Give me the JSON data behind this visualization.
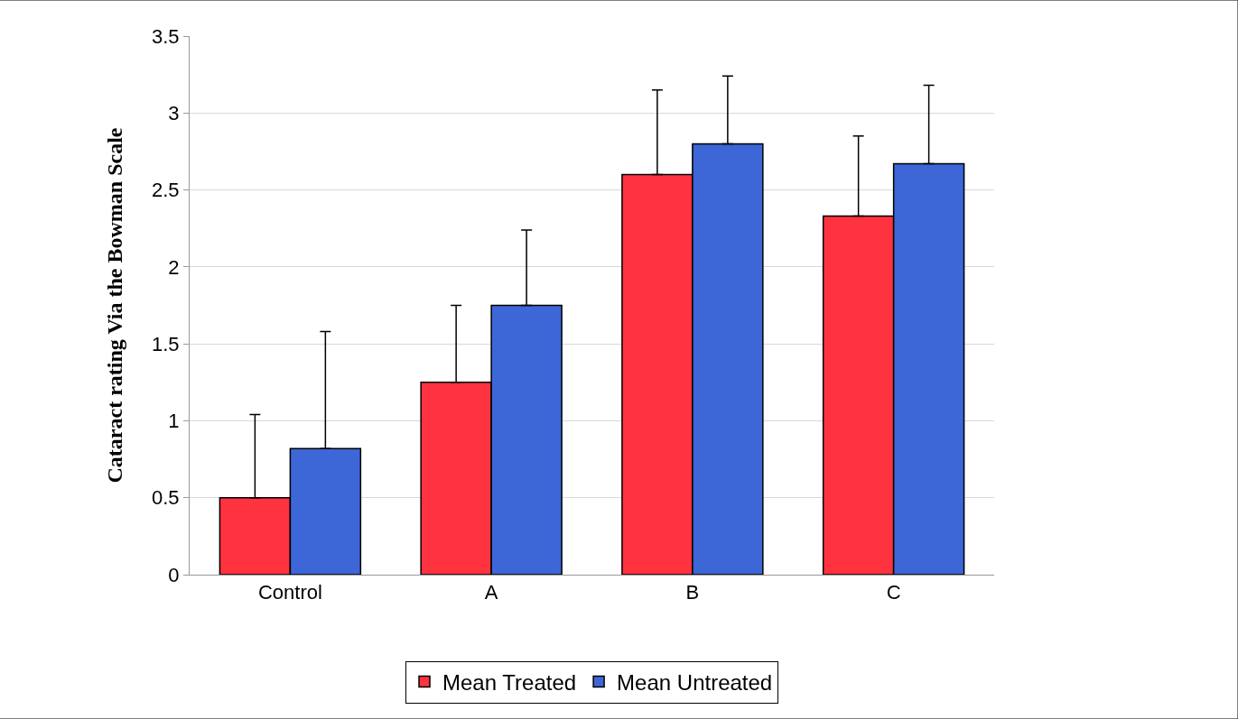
{
  "chart_data": {
    "type": "bar",
    "ylabel": "Cataract rating Via the Bowman Scale",
    "categories": [
      "Control",
      "A",
      "B",
      "C"
    ],
    "series": [
      {
        "name": "Mean Treated",
        "color": "#ff3340",
        "values": [
          0.5,
          1.25,
          2.6,
          2.33
        ],
        "errors": [
          [
            0.5,
            1.04
          ],
          [
            1.25,
            1.75
          ],
          [
            2.6,
            3.15
          ],
          [
            2.33,
            2.85
          ]
        ]
      },
      {
        "name": "Mean Untreated",
        "color": "#3d66d6",
        "values": [
          0.82,
          1.75,
          2.8,
          2.67
        ],
        "errors": [
          [
            0.82,
            1.58
          ],
          [
            1.75,
            2.24
          ],
          [
            2.8,
            3.24
          ],
          [
            2.67,
            3.18
          ]
        ]
      }
    ],
    "ylim": [
      0,
      3.5
    ],
    "yticks": [
      0,
      0.5,
      1,
      1.5,
      2,
      2.5,
      3,
      3.5
    ],
    "grid": "y",
    "legend": "bottom"
  }
}
